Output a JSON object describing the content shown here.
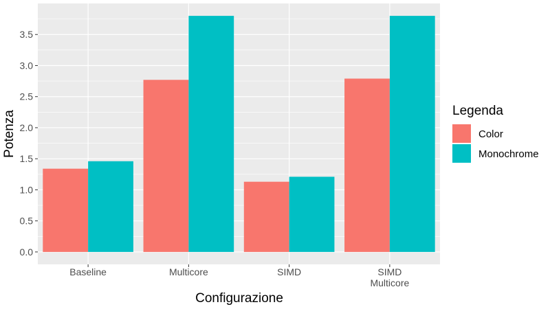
{
  "chart_data": {
    "type": "bar",
    "xlabel": "Configurazione",
    "ylabel": "Potenza",
    "ylim": [
      -0.2,
      4.0
    ],
    "yticks": [
      "0.0",
      "0.5",
      "1.0",
      "1.5",
      "2.0",
      "2.5",
      "3.0",
      "3.5"
    ],
    "categories": [
      [
        "Baseline"
      ],
      [
        "Multicore"
      ],
      [
        "SIMD"
      ],
      [
        "SIMD",
        "Multicore"
      ]
    ],
    "series": [
      {
        "name": "Color",
        "color": "#F8766D",
        "values": [
          1.34,
          2.77,
          1.13,
          2.79
        ]
      },
      {
        "name": "Monochrome",
        "color": "#00BFC4",
        "values": [
          1.46,
          3.8,
          1.21,
          3.8
        ]
      }
    ],
    "legend": {
      "title": "Legenda",
      "position": "right"
    },
    "grid": true,
    "panel_background": "#EBEBEB"
  }
}
